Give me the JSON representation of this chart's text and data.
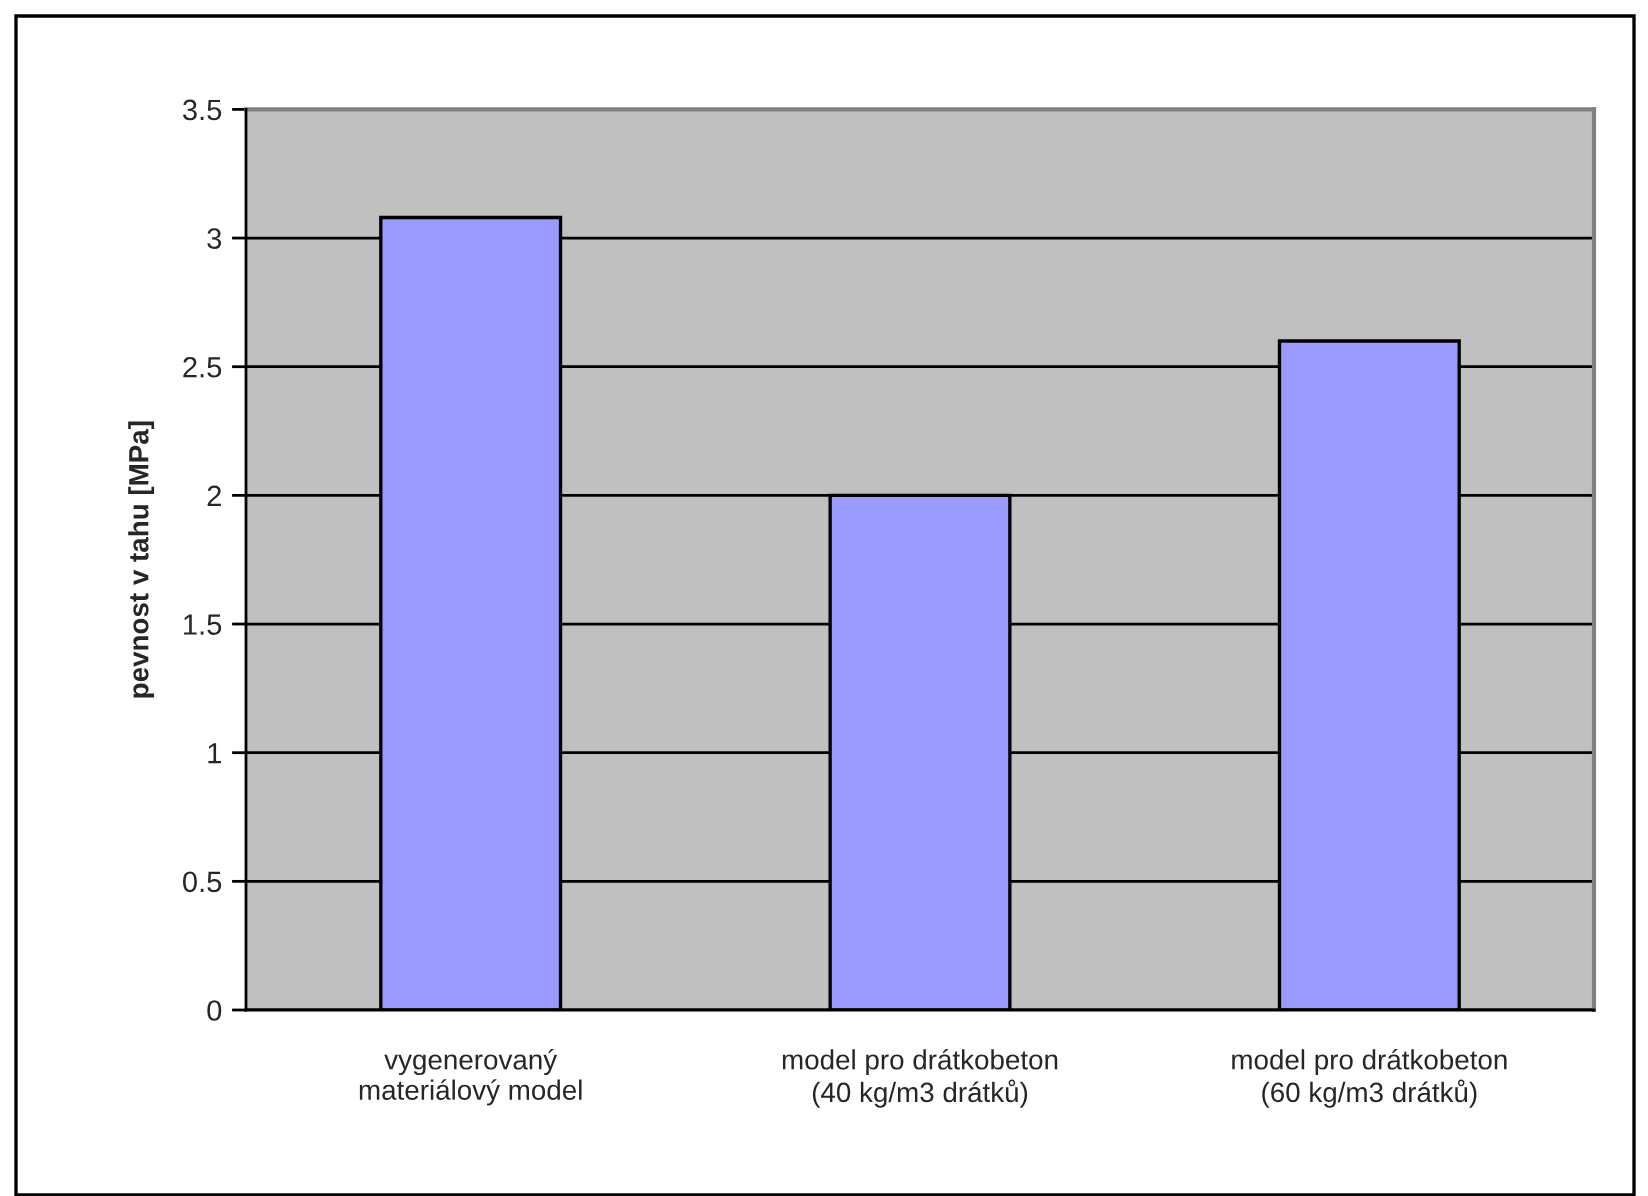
{
  "chart_data": {
    "type": "bar",
    "categories": [
      "vygenerovaný\nmateriálový model",
      "model pro drátkobeton\n(40 kg/m3 drátků)",
      "model pro drátkobeton\n(60 kg/m3 drátků)"
    ],
    "values": [
      3.08,
      2.0,
      2.6
    ],
    "color": "#9999ff",
    "ylabel": "pevnost v tahu [MPa]",
    "ylim": [
      0,
      3.5
    ],
    "yticks": [
      0,
      0.5,
      1,
      1.5,
      2,
      2.5,
      3,
      3.5
    ],
    "grid": "y"
  }
}
